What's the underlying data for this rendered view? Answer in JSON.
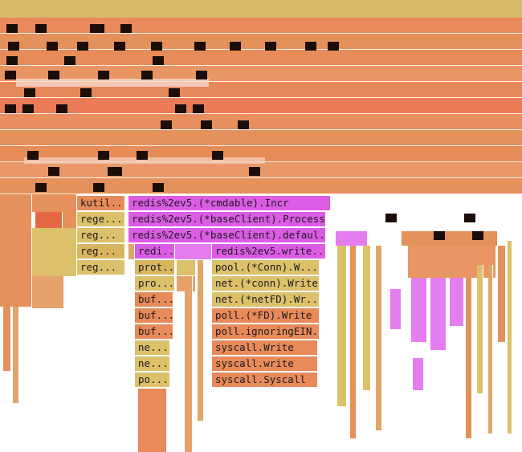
{
  "colors": {
    "top_strip": "#d9b96a",
    "orange_a": "#e5915c",
    "orange_b": "#e88a5a",
    "orange_c": "#eb7c57",
    "salmon": "#ea9970",
    "tan": "#e0a668",
    "yellow": "#dcc06a",
    "khaki": "#d9b560",
    "magenta": "#dc5ce6",
    "magenta_light": "#e47df0",
    "redorange": "#e56844",
    "background": "#ffffff"
  },
  "frames": [
    {
      "label": "kutil....",
      "color": "orange_b"
    },
    {
      "label": "redis%2ev5.(*cmdable).Incr",
      "color": "magenta"
    },
    {
      "label": "rege...",
      "color": "yellow"
    },
    {
      "label": "redis%2ev5.(*baseClient).Process",
      "color": "magenta"
    },
    {
      "label": "reg...",
      "color": "yellow"
    },
    {
      "label": "redis%2ev5.(*baseClient).defaul...",
      "color": "magenta"
    },
    {
      "label": "reg...",
      "color": "khaki"
    },
    {
      "label": "redi...",
      "color": "magenta"
    },
    {
      "label": "redis%2ev5.write...",
      "color": "magenta"
    },
    {
      "label": "reg...",
      "color": "yellow"
    },
    {
      "label": "prot...",
      "color": "khaki"
    },
    {
      "label": "pool.(*Conn).W...",
      "color": "yellow"
    },
    {
      "label": "pro...",
      "color": "yellow"
    },
    {
      "label": "net.(*conn).Write",
      "color": "yellow"
    },
    {
      "label": "buf...",
      "color": "orange_b"
    },
    {
      "label": "net.(*netFD).Wr...",
      "color": "yellow"
    },
    {
      "label": "buf...",
      "color": "orange_b"
    },
    {
      "label": "poll.(*FD).Write",
      "color": "orange_b"
    },
    {
      "label": "buf...",
      "color": "orange_b"
    },
    {
      "label": "poll.ignoringEIN...",
      "color": "orange_b"
    },
    {
      "label": "ne...",
      "color": "yellow"
    },
    {
      "label": "syscall.Write",
      "color": "orange_b"
    },
    {
      "label": "ne...",
      "color": "yellow"
    },
    {
      "label": "syscall.write",
      "color": "orange_b"
    },
    {
      "label": "po...",
      "color": "yellow"
    },
    {
      "label": "syscall.Syscall",
      "color": "orange_b"
    }
  ],
  "obscured_note": "Upper frames are pixelated/redacted in the source image"
}
